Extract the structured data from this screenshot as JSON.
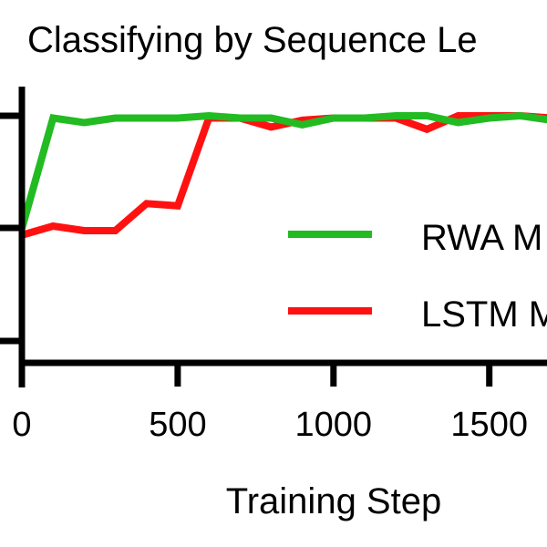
{
  "chart_data": {
    "type": "line",
    "title": "Classifying by Sequence Le",
    "xlabel": "Training  Step",
    "ylabel": "",
    "x_ticks": [
      0,
      500,
      1000,
      1500
    ],
    "y_ticks_normalized": [
      0.0,
      0.5,
      1.0
    ],
    "xlim": [
      0,
      1700
    ],
    "ylim": [
      -0.1,
      1.1
    ],
    "grid": false,
    "legend_position": "center-right",
    "x": [
      0,
      100,
      200,
      300,
      400,
      500,
      600,
      700,
      800,
      900,
      1000,
      1100,
      1200,
      1300,
      1400,
      1500,
      1600,
      1700
    ],
    "series": [
      {
        "name": "RWA M",
        "color": "#22bb22",
        "values": [
          0.5,
          0.99,
          0.97,
          0.99,
          0.99,
          0.99,
          1.0,
          0.99,
          0.99,
          0.96,
          0.99,
          0.99,
          1.0,
          1.0,
          0.97,
          0.99,
          1.0,
          0.98
        ]
      },
      {
        "name": "LSTM M",
        "color": "#ff1111",
        "values": [
          0.47,
          0.51,
          0.49,
          0.49,
          0.61,
          0.6,
          0.99,
          0.99,
          0.95,
          0.98,
          0.99,
          0.99,
          0.99,
          0.94,
          1.0,
          1.0,
          1.0,
          0.99
        ]
      }
    ]
  },
  "title": "Classifying by Sequence Le",
  "axes": {
    "x_tick_labels": [
      "0",
      "500",
      "1000",
      "1500"
    ],
    "x_label": "Training  Step"
  },
  "legend": {
    "items": [
      {
        "label": "RWA M",
        "color": "#22bb22"
      },
      {
        "label": "LSTM M",
        "color": "#ff1111"
      }
    ]
  }
}
